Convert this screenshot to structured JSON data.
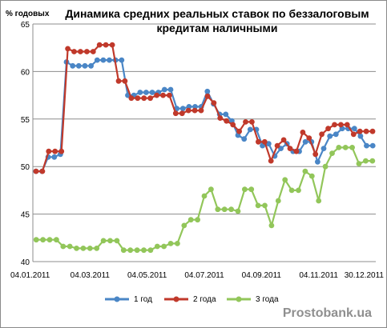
{
  "chart_data": {
    "type": "line",
    "title": "Динамика средних реальных ставок по беззалоговым кредитам наличными",
    "title_lines": [
      "Динамика средних реальных ставок по беззалоговым",
      "кредитам наличными"
    ],
    "ylabel": "% годовых",
    "xlabel": "",
    "ylim": [
      40,
      65
    ],
    "yticks": [
      40,
      45,
      50,
      55,
      60,
      65
    ],
    "x_tick_labels": [
      "04.01.2011",
      "04.03.2011",
      "04.05.2011",
      "04.07.2011",
      "04.09.2011",
      "04.11.2011",
      "30.12.2011"
    ],
    "grid": "horizontal",
    "legend_position": "bottom",
    "series": [
      {
        "name": "1 год",
        "color": "#4a86c6",
        "values": [
          49.5,
          49.5,
          51.0,
          51.0,
          51.3,
          61.0,
          60.6,
          60.6,
          60.6,
          60.6,
          61.2,
          61.2,
          61.2,
          61.2,
          61.2,
          57.5,
          57.5,
          57.8,
          57.8,
          57.8,
          57.8,
          58.1,
          58.1,
          56.1,
          56.1,
          56.3,
          56.3,
          56.3,
          57.9,
          56.6,
          55.5,
          55.5,
          54.8,
          53.3,
          52.9,
          53.9,
          53.9,
          52.2,
          52.4,
          51.1,
          51.9,
          52.4,
          51.6,
          51.6,
          52.6,
          52.6,
          50.5,
          51.9,
          53.2,
          53.4,
          54.0,
          54.0,
          54.0,
          53.2,
          52.2,
          52.2
        ]
      },
      {
        "name": "2 года",
        "color": "#c0392b",
        "values": [
          49.5,
          49.5,
          51.6,
          51.6,
          51.6,
          62.4,
          62.1,
          62.1,
          62.1,
          62.1,
          62.8,
          62.8,
          62.8,
          59.0,
          59.0,
          57.2,
          57.2,
          57.2,
          57.2,
          57.5,
          57.5,
          57.5,
          55.6,
          55.6,
          55.9,
          55.9,
          55.9,
          57.4,
          56.7,
          55.1,
          54.8,
          54.4,
          53.7,
          54.7,
          54.7,
          52.6,
          52.6,
          50.6,
          52.2,
          52.8,
          51.9,
          51.6,
          53.6,
          53.0,
          51.3,
          53.4,
          54.0,
          54.4,
          54.4,
          54.4,
          53.4,
          53.7,
          53.7,
          53.7
        ]
      },
      {
        "name": "3 года",
        "color": "#92c65a",
        "values": [
          42.3,
          42.3,
          42.3,
          42.3,
          41.6,
          41.6,
          41.4,
          41.4,
          41.4,
          41.4,
          42.2,
          42.2,
          42.2,
          41.2,
          41.2,
          41.2,
          41.2,
          41.2,
          41.6,
          41.6,
          41.9,
          41.9,
          43.8,
          44.4,
          44.4,
          46.9,
          47.6,
          45.5,
          45.5,
          45.5,
          45.3,
          47.6,
          47.6,
          45.9,
          45.9,
          43.8,
          46.4,
          48.6,
          47.5,
          47.5,
          49.5,
          49.0,
          46.4,
          50.0,
          51.4,
          52.0,
          52.0,
          52.0,
          50.3,
          50.6,
          50.6
        ]
      }
    ]
  },
  "watermark": "Prostobank.ua"
}
